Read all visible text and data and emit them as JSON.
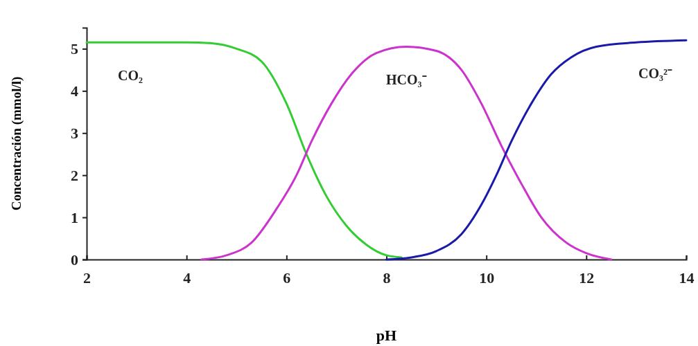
{
  "chart_data": {
    "type": "line",
    "xlabel": "pH",
    "ylabel": "Concentración (mmol/l)",
    "xlim": [
      2,
      14
    ],
    "ylim": [
      0,
      5.5
    ],
    "xticks": [
      2,
      4,
      6,
      8,
      10,
      12,
      14
    ],
    "yticks": [
      0,
      1,
      2,
      3,
      4,
      5
    ],
    "grid": false,
    "legend": false,
    "marker": "none",
    "line_style": "solid",
    "series": [
      {
        "name": "CO₂",
        "color": "#33cc33",
        "x": [
          2,
          3,
          4,
          4.5,
          5,
          5.5,
          6,
          6.4,
          6.8,
          7.2,
          7.6,
          8,
          8.3
        ],
        "values": [
          5.15,
          5.15,
          5.15,
          5.13,
          5.0,
          4.7,
          3.7,
          2.5,
          1.5,
          0.8,
          0.35,
          0.1,
          0.05
        ]
      },
      {
        "name": "HCO₃⁻",
        "color": "#cc33cc",
        "x": [
          4.3,
          4.8,
          5.3,
          5.8,
          6.2,
          6.5,
          6.9,
          7.3,
          7.8,
          8.4,
          9,
          9.5,
          9.9,
          10.3,
          10.7,
          11.1,
          11.6,
          12,
          12.5
        ],
        "values": [
          0,
          0.1,
          0.4,
          1.2,
          2.0,
          2.8,
          3.7,
          4.4,
          4.9,
          5.05,
          4.95,
          4.5,
          3.7,
          2.7,
          1.8,
          1.0,
          0.4,
          0.15,
          0
        ]
      },
      {
        "name": "CO₃²⁻",
        "color": "#1a1aaa",
        "x": [
          8,
          8.5,
          9,
          9.5,
          9.9,
          10.2,
          10.5,
          10.9,
          11.3,
          11.7,
          12.2,
          13,
          14
        ],
        "values": [
          0,
          0.05,
          0.2,
          0.6,
          1.3,
          2.0,
          2.8,
          3.7,
          4.4,
          4.8,
          5.05,
          5.15,
          5.2
        ]
      }
    ]
  }
}
